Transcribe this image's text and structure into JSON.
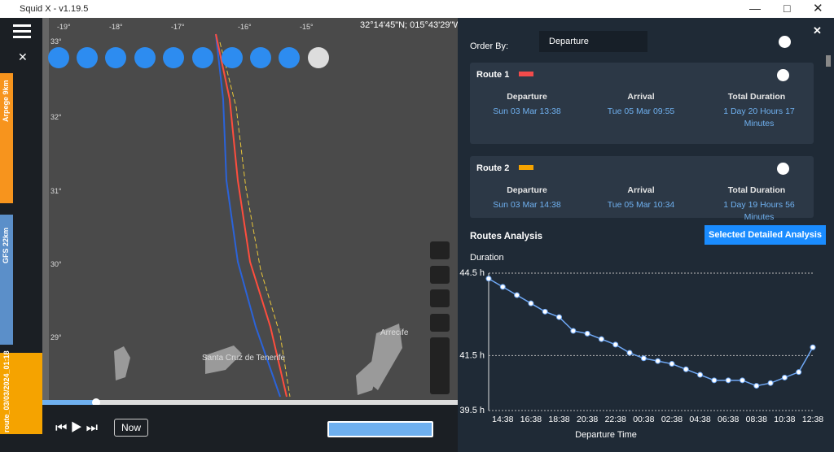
{
  "window": {
    "title": "Squid X - v1.19.5"
  },
  "map": {
    "coordinates": "32°14'45\"N; 015°43'29\"W",
    "lon_labels": [
      "-19°",
      "-18°",
      "-17°",
      "-16°",
      "-15°"
    ],
    "lat_labels": [
      "33°",
      "32°",
      "31°",
      "30°",
      "29°"
    ],
    "places": [
      "Santa Cruz de Tenerife",
      "Arrecife"
    ]
  },
  "sidebar": {
    "models": [
      "Arpege 9km",
      "GFS 22km",
      "route_03/03/2024_01:18"
    ]
  },
  "timeline": {
    "now_button": "Now"
  },
  "panel": {
    "order_by_label": "Order By:",
    "order_by_value": "Departure",
    "columns": [
      "Departure",
      "Arrival",
      "Total Duration"
    ],
    "routes": [
      {
        "name": "Route 1",
        "color": "#f24b4b",
        "departure": "Sun 03 Mar 13:38",
        "arrival": "Tue 05 Mar 09:55",
        "duration": "1 Day 20 Hours 17 Minutes"
      },
      {
        "name": "Route 2",
        "color": "#f5a300",
        "departure": "Sun 03 Mar 14:38",
        "arrival": "Tue 05 Mar 10:34",
        "duration": "1 Day 19 Hours 56 Minutes"
      }
    ],
    "analysis_title": "Routes Analysis",
    "analysis_button": "Selected Detailed Analysis"
  },
  "chart_data": {
    "type": "line",
    "y_label": "Duration",
    "x_label": "Departure Time",
    "categories": [
      null,
      "14:38",
      null,
      "16:38",
      null,
      "18:38",
      null,
      "20:38",
      null,
      "22:38",
      null,
      "00:38",
      null,
      "02:38",
      null,
      "04:38",
      null,
      "06:38",
      null,
      "08:38",
      null,
      "10:38",
      null,
      "12:38"
    ],
    "series": [
      {
        "name": "Duration",
        "color": "#6fa8f5",
        "values": [
          44.3,
          44.0,
          43.7,
          43.4,
          43.1,
          42.9,
          42.4,
          42.3,
          42.1,
          41.9,
          41.6,
          41.4,
          41.3,
          41.2,
          41.0,
          40.8,
          40.6,
          40.6,
          40.6,
          40.4,
          40.5,
          40.7,
          40.9,
          41.8
        ]
      }
    ],
    "ylim": [
      39.5,
      44.5
    ],
    "yticks": [
      {
        "value": 39.5,
        "label": "39.5 h"
      },
      {
        "value": 41.5,
        "label": "41.5 h"
      },
      {
        "value": 44.5,
        "label": "44.5 h"
      }
    ],
    "grid": true
  }
}
